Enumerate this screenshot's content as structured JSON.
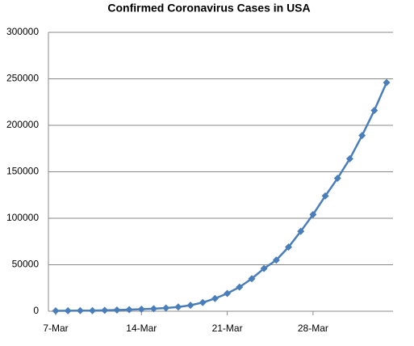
{
  "chart_data": {
    "type": "line",
    "title": "Confirmed Coronavirus Cases in USA",
    "categories": [
      "7-Mar",
      null,
      null,
      null,
      null,
      null,
      null,
      "14-Mar",
      null,
      null,
      null,
      null,
      null,
      null,
      "21-Mar",
      null,
      null,
      null,
      null,
      null,
      null,
      "28-Mar",
      null,
      null,
      null,
      null,
      null,
      null
    ],
    "series": [
      {
        "color": "#4a7ebb",
        "values": [
          400,
          500,
          600,
          700,
          1000,
          1300,
          1700,
          2200,
          2700,
          3500,
          4600,
          6400,
          9400,
          13700,
          19100,
          26000,
          35000,
          46000,
          55000,
          69000,
          86000,
          104000,
          124000,
          143000,
          164000,
          189000,
          216000,
          246000
        ]
      }
    ],
    "ylim": [
      0,
      300000
    ],
    "yticks": [
      0,
      50000,
      100000,
      150000,
      200000,
      250000,
      300000
    ],
    "grid": true
  }
}
